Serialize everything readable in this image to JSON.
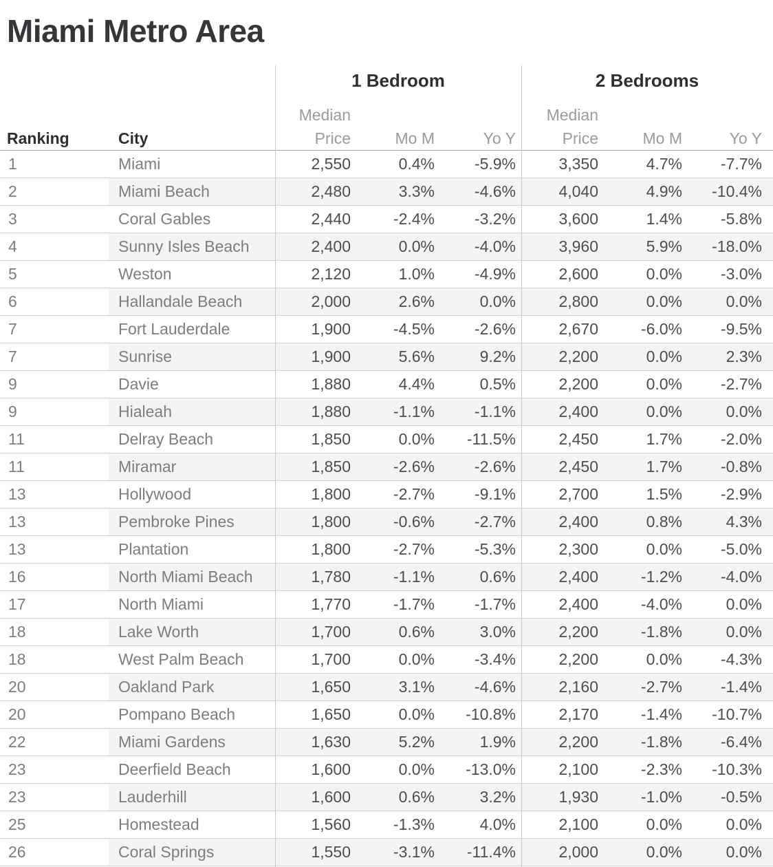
{
  "chart_data": {
    "type": "table",
    "title": "Miami Metro Area",
    "row_headers": {
      "ranking": "Ranking",
      "city": "City"
    },
    "groups": [
      {
        "label": "1 Bedroom"
      },
      {
        "label": "2 Bedrooms"
      }
    ],
    "sub_headers": {
      "median": "Median",
      "price": "Price",
      "mom": "Mo M",
      "yoy": "Yo Y"
    },
    "columns": [
      "Ranking",
      "City",
      "1 Bedroom Median Price",
      "1 Bedroom Mo M",
      "1 Bedroom Yo Y",
      "2 Bedrooms Median Price",
      "2 Bedrooms Mo M",
      "2 Bedrooms Yo Y"
    ],
    "rows": [
      [
        "1",
        "Miami",
        "2,550",
        "0.4%",
        "-5.9%",
        "3,350",
        "4.7%",
        "-7.7%"
      ],
      [
        "2",
        "Miami Beach",
        "2,480",
        "3.3%",
        "-4.6%",
        "4,040",
        "4.9%",
        "-10.4%"
      ],
      [
        "3",
        "Coral Gables",
        "2,440",
        "-2.4%",
        "-3.2%",
        "3,600",
        "1.4%",
        "-5.8%"
      ],
      [
        "4",
        "Sunny Isles Beach",
        "2,400",
        "0.0%",
        "-4.0%",
        "3,960",
        "5.9%",
        "-18.0%"
      ],
      [
        "5",
        "Weston",
        "2,120",
        "1.0%",
        "-4.9%",
        "2,600",
        "0.0%",
        "-3.0%"
      ],
      [
        "6",
        "Hallandale Beach",
        "2,000",
        "2.6%",
        "0.0%",
        "2,800",
        "0.0%",
        "0.0%"
      ],
      [
        "7",
        "Fort Lauderdale",
        "1,900",
        "-4.5%",
        "-2.6%",
        "2,670",
        "-6.0%",
        "-9.5%"
      ],
      [
        "7",
        "Sunrise",
        "1,900",
        "5.6%",
        "9.2%",
        "2,200",
        "0.0%",
        "2.3%"
      ],
      [
        "9",
        "Davie",
        "1,880",
        "4.4%",
        "0.5%",
        "2,200",
        "0.0%",
        "-2.7%"
      ],
      [
        "9",
        "Hialeah",
        "1,880",
        "-1.1%",
        "-1.1%",
        "2,400",
        "0.0%",
        "0.0%"
      ],
      [
        "11",
        "Delray Beach",
        "1,850",
        "0.0%",
        "-11.5%",
        "2,450",
        "1.7%",
        "-2.0%"
      ],
      [
        "11",
        "Miramar",
        "1,850",
        "-2.6%",
        "-2.6%",
        "2,450",
        "1.7%",
        "-0.8%"
      ],
      [
        "13",
        "Hollywood",
        "1,800",
        "-2.7%",
        "-9.1%",
        "2,700",
        "1.5%",
        "-2.9%"
      ],
      [
        "13",
        "Pembroke Pines",
        "1,800",
        "-0.6%",
        "-2.7%",
        "2,400",
        "0.8%",
        "4.3%"
      ],
      [
        "13",
        "Plantation",
        "1,800",
        "-2.7%",
        "-5.3%",
        "2,300",
        "0.0%",
        "-5.0%"
      ],
      [
        "16",
        "North Miami Beach",
        "1,780",
        "-1.1%",
        "0.6%",
        "2,400",
        "-1.2%",
        "-4.0%"
      ],
      [
        "17",
        "North Miami",
        "1,770",
        "-1.7%",
        "-1.7%",
        "2,400",
        "-4.0%",
        "0.0%"
      ],
      [
        "18",
        "Lake Worth",
        "1,700",
        "0.6%",
        "3.0%",
        "2,200",
        "-1.8%",
        "0.0%"
      ],
      [
        "18",
        "West Palm Beach",
        "1,700",
        "0.0%",
        "-3.4%",
        "2,200",
        "0.0%",
        "-4.3%"
      ],
      [
        "20",
        "Oakland Park",
        "1,650",
        "3.1%",
        "-4.6%",
        "2,160",
        "-2.7%",
        "-1.4%"
      ],
      [
        "20",
        "Pompano Beach",
        "1,650",
        "0.0%",
        "-10.8%",
        "2,170",
        "-1.4%",
        "-10.7%"
      ],
      [
        "22",
        "Miami Gardens",
        "1,630",
        "5.2%",
        "1.9%",
        "2,200",
        "-1.8%",
        "-6.4%"
      ],
      [
        "23",
        "Deerfield Beach",
        "1,600",
        "0.0%",
        "-13.0%",
        "2,100",
        "-2.3%",
        "-10.3%"
      ],
      [
        "23",
        "Lauderhill",
        "1,600",
        "0.6%",
        "3.2%",
        "1,930",
        "-1.0%",
        "-0.5%"
      ],
      [
        "25",
        "Homestead",
        "1,560",
        "-1.3%",
        "4.0%",
        "2,100",
        "0.0%",
        "0.0%"
      ],
      [
        "26",
        "Coral Springs",
        "1,550",
        "-3.1%",
        "-11.4%",
        "2,000",
        "0.0%",
        "0.0%"
      ]
    ],
    "layout": {
      "grid": "row banding on alternate rows starting with second row",
      "legend": "none"
    },
    "colors": {
      "title_text": "#35353a",
      "header_text": "#2f2f2f",
      "measure_label_text": "#9b9b9b",
      "dimension_text": "#7d7d7d",
      "value_text": "#4d4d4d",
      "row_band": "#f4f4f4",
      "row_line": "#d4d4d4",
      "pane_divider": "#c9c9c9",
      "header_underline": "#a8a8a8",
      "background": "#ffffff"
    }
  }
}
